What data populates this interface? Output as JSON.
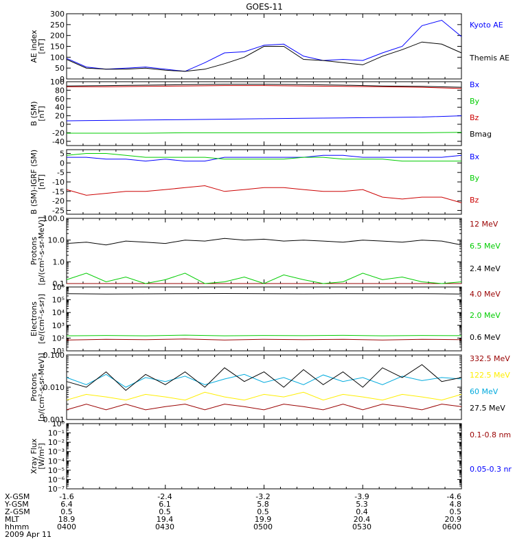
{
  "title": "GOES-11",
  "colors": {
    "black": "#000000",
    "blue": "#0000ff",
    "green": "#00cc00",
    "red": "#cc0000",
    "darkred": "#990000",
    "cyan": "#00aadd",
    "yellow": "#ffee00"
  },
  "footer": {
    "rows": [
      {
        "label": "X-GSM",
        "values": [
          "-1.6",
          "-2.4",
          "-3.2",
          "-3.9",
          "-4.6"
        ]
      },
      {
        "label": "Y-GSM",
        "values": [
          "6.4",
          "6.1",
          "5.8",
          "5.3",
          "4.8"
        ]
      },
      {
        "label": "Z-GSM",
        "values": [
          "0.5",
          "0.5",
          "0.5",
          "0.4",
          "0.5"
        ]
      },
      {
        "label": "MLT",
        "values": [
          "18.9",
          "19.4",
          "19.9",
          "20.4",
          "20.9"
        ]
      },
      {
        "label": "hhmm",
        "values": [
          "0400",
          "0430",
          "0500",
          "0530",
          "0600"
        ]
      }
    ],
    "date": "2009 Apr 11"
  },
  "chart_data": [
    {
      "type": "line",
      "panel": "ae",
      "ylabel": "AE index\n[nT]",
      "scale": "linear",
      "ylim": [
        0,
        300
      ],
      "yticks": [
        0,
        50,
        100,
        150,
        200,
        250,
        300
      ],
      "yticklabels": [
        "0",
        "50",
        "100",
        "150",
        "200",
        "250",
        "300"
      ],
      "x_hours": [
        4.0,
        4.1,
        4.2,
        4.3,
        4.4,
        4.5,
        4.6,
        4.7,
        4.8,
        4.9,
        5.0,
        5.1,
        5.2,
        5.3,
        5.4,
        5.5,
        5.6,
        5.7,
        5.8,
        5.9,
        6.0
      ],
      "series": [
        {
          "name": "Kyoto AE",
          "color": "blue",
          "values": [
            95,
            55,
            45,
            50,
            55,
            45,
            35,
            75,
            120,
            125,
            155,
            160,
            105,
            85,
            90,
            85,
            120,
            150,
            245,
            270,
            195
          ]
        },
        {
          "name": "Themis AE",
          "color": "black",
          "values": [
            90,
            50,
            45,
            45,
            50,
            40,
            35,
            45,
            70,
            100,
            150,
            150,
            90,
            85,
            75,
            65,
            105,
            135,
            170,
            160,
            120
          ]
        }
      ]
    },
    {
      "type": "line",
      "panel": "b",
      "ylabel": "B (SM)\n[nT]",
      "scale": "linear",
      "ylim": [
        -50,
        100
      ],
      "yticks": [
        -40,
        -20,
        0,
        20,
        40,
        60,
        80,
        100
      ],
      "yticklabels": [
        "-40",
        "-20",
        "0",
        "20",
        "40",
        "60",
        "80",
        "100"
      ],
      "x_hours": [
        4.0,
        4.2,
        4.4,
        4.6,
        4.8,
        5.0,
        5.2,
        5.4,
        5.6,
        5.8,
        6.0
      ],
      "series": [
        {
          "name": "Bx",
          "color": "blue",
          "values": [
            8,
            9,
            10,
            11,
            12,
            13,
            14,
            15,
            16,
            17,
            20
          ]
        },
        {
          "name": "By",
          "color": "green",
          "values": [
            -21,
            -21,
            -21,
            -20,
            -20,
            -20,
            -20,
            -20,
            -20,
            -20,
            -19
          ]
        },
        {
          "name": "Bz",
          "color": "red",
          "values": [
            88,
            88,
            89,
            90,
            91,
            91,
            90,
            89,
            88,
            87,
            84
          ]
        },
        {
          "name": "Bmag",
          "color": "black",
          "values": [
            90,
            91,
            92,
            93,
            94,
            94,
            93,
            92,
            90,
            89,
            87
          ]
        }
      ]
    },
    {
      "type": "line",
      "panel": "dbigrf",
      "ylabel": "B (SM)-IGRF (SM)\n[nT]",
      "scale": "linear",
      "ylim": [
        -27,
        7
      ],
      "yticks": [
        -25,
        -20,
        -15,
        -10,
        -5,
        0,
        5
      ],
      "yticklabels": [
        "-25",
        "-20",
        "-15",
        "-10",
        "-5",
        "0",
        "5"
      ],
      "x_hours": [
        4.0,
        4.1,
        4.2,
        4.3,
        4.4,
        4.5,
        4.6,
        4.7,
        4.8,
        4.9,
        5.0,
        5.1,
        5.2,
        5.3,
        5.4,
        5.5,
        5.6,
        5.7,
        5.8,
        5.9,
        6.0
      ],
      "series": [
        {
          "name": "Bx",
          "color": "blue",
          "values": [
            3,
            3,
            2,
            2,
            1,
            2,
            1,
            1,
            3,
            3,
            3,
            3,
            3,
            4,
            4,
            3,
            3,
            3,
            3,
            3,
            4
          ]
        },
        {
          "name": "By",
          "color": "green",
          "values": [
            4,
            5,
            5,
            4,
            3,
            3,
            3,
            3,
            2,
            2,
            2,
            2,
            3,
            3,
            2,
            2,
            2,
            1,
            1,
            1,
            1
          ]
        },
        {
          "name": "Bz",
          "color": "red",
          "values": [
            -14,
            -17,
            -16,
            -15,
            -15,
            -14,
            -13,
            -12,
            -15,
            -14,
            -13,
            -13,
            -14,
            -15,
            -15,
            -14,
            -18,
            -19,
            -18,
            -18,
            -21
          ]
        }
      ]
    },
    {
      "type": "line",
      "panel": "protons_hi",
      "ylabel": "Protons\n[p/(cm²-s-sr-MeV)]",
      "scale": "log",
      "ylim": [
        0.1,
        100
      ],
      "yticks": [
        0.1,
        1,
        10,
        100
      ],
      "yticklabels": [
        "0.1",
        "1.0",
        "10.0",
        "100.0"
      ],
      "x_hours": [
        4.0,
        4.1,
        4.2,
        4.3,
        4.4,
        4.5,
        4.6,
        4.7,
        4.8,
        4.9,
        5.0,
        5.1,
        5.2,
        5.3,
        5.4,
        5.5,
        5.6,
        5.7,
        5.8,
        5.9,
        6.0
      ],
      "series": [
        {
          "name": "12 MeV",
          "color": "darkred",
          "values": [
            0.1,
            0.1,
            0.1,
            0.1,
            0.1,
            0.1,
            0.1,
            0.1,
            0.1,
            0.1,
            0.1,
            0.1,
            0.1,
            0.1,
            0.1,
            0.1,
            0.1,
            0.1,
            0.1,
            0.1,
            0.1
          ]
        },
        {
          "name": "6.5 MeV",
          "color": "green",
          "values": [
            0.15,
            0.3,
            0.12,
            0.2,
            0.1,
            0.15,
            0.3,
            0.1,
            0.12,
            0.2,
            0.1,
            0.25,
            0.15,
            0.1,
            0.12,
            0.3,
            0.15,
            0.2,
            0.12,
            0.1,
            0.12
          ]
        },
        {
          "name": "2.4 MeV",
          "color": "black",
          "values": [
            7,
            8,
            6,
            9,
            8,
            7,
            10,
            9,
            12,
            10,
            11,
            9,
            10,
            9,
            8,
            10,
            9,
            8,
            10,
            9,
            6
          ]
        }
      ]
    },
    {
      "type": "line",
      "panel": "electrons",
      "ylabel": "Electrons\n[e/(cm²-s-sr)]",
      "scale": "log",
      "ylim": [
        10,
        1000000
      ],
      "yticks": [
        10,
        100,
        1000,
        10000,
        100000,
        1000000
      ],
      "yticklabels": [
        "10¹",
        "10²",
        "10³",
        "10⁴",
        "10⁵",
        "10⁶"
      ],
      "x_hours": [
        4.0,
        4.2,
        4.4,
        4.6,
        4.8,
        5.0,
        5.2,
        5.4,
        5.6,
        5.8,
        6.0
      ],
      "series": [
        {
          "name": "4.0 MeV",
          "color": "darkred",
          "values": [
            70,
            80,
            75,
            85,
            70,
            80,
            75,
            80,
            70,
            80,
            75
          ]
        },
        {
          "name": "2.0 MeV",
          "color": "green",
          "values": [
            150,
            160,
            150,
            170,
            150,
            160,
            155,
            165,
            150,
            160,
            155
          ]
        },
        {
          "name": "0.6 MeV",
          "color": "black",
          "values": [
            300000,
            280000,
            290000,
            300000,
            310000,
            300000,
            290000,
            300000,
            295000,
            300000,
            280000
          ]
        }
      ]
    },
    {
      "type": "line",
      "panel": "protons_lo",
      "ylabel": "Protons\n[p/(cm²-s-sr-MeV)]",
      "scale": "log",
      "ylim": [
        0.001,
        0.1
      ],
      "yticks": [
        0.001,
        0.01,
        0.1
      ],
      "yticklabels": [
        "0.001",
        "0.010",
        "0.100"
      ],
      "x_hours": [
        4.0,
        4.1,
        4.2,
        4.3,
        4.4,
        4.5,
        4.6,
        4.7,
        4.8,
        4.9,
        5.0,
        5.1,
        5.2,
        5.3,
        5.4,
        5.5,
        5.6,
        5.7,
        5.8,
        5.9,
        6.0
      ],
      "series": [
        {
          "name": "332.5 MeV",
          "color": "darkred",
          "values": [
            0.002,
            0.003,
            0.002,
            0.003,
            0.002,
            0.0025,
            0.003,
            0.002,
            0.003,
            0.0025,
            0.002,
            0.003,
            0.0025,
            0.002,
            0.003,
            0.002,
            0.003,
            0.0025,
            0.002,
            0.003,
            0.0025
          ]
        },
        {
          "name": "122.5 MeV",
          "color": "yellow",
          "values": [
            0.004,
            0.006,
            0.005,
            0.004,
            0.006,
            0.005,
            0.004,
            0.007,
            0.005,
            0.004,
            0.006,
            0.005,
            0.007,
            0.004,
            0.006,
            0.005,
            0.004,
            0.006,
            0.005,
            0.004,
            0.006
          ]
        },
        {
          "name": "60 MeV",
          "color": "cyan",
          "values": [
            0.02,
            0.012,
            0.025,
            0.01,
            0.02,
            0.015,
            0.022,
            0.012,
            0.018,
            0.025,
            0.014,
            0.02,
            0.012,
            0.024,
            0.015,
            0.02,
            0.012,
            0.022,
            0.016,
            0.02,
            0.018
          ]
        },
        {
          "name": "27.5 MeV",
          "color": "black",
          "values": [
            0.015,
            0.01,
            0.03,
            0.008,
            0.025,
            0.012,
            0.03,
            0.01,
            0.04,
            0.015,
            0.03,
            0.01,
            0.035,
            0.012,
            0.03,
            0.01,
            0.04,
            0.02,
            0.05,
            0.015,
            0.02
          ]
        }
      ]
    },
    {
      "type": "line",
      "panel": "xray",
      "ylabel": "Xray Flux\n[W/m²]",
      "scale": "log",
      "ylim": [
        1e-07,
        1
      ],
      "yticks": [
        1e-07,
        1e-06,
        1e-05,
        0.0001,
        0.001,
        0.01,
        0.1,
        1
      ],
      "yticklabels": [
        "10⁻⁷",
        "10⁻⁶",
        "10⁻⁵",
        "10⁻⁴",
        "10⁻³",
        "10⁻²",
        "10⁻¹",
        "10⁰"
      ],
      "x_hours": [],
      "series": [
        {
          "name": "0.1-0.8 nm",
          "color": "darkred",
          "values": []
        },
        {
          "name": "0.05-0.3 nr",
          "color": "blue",
          "values": []
        }
      ]
    }
  ]
}
